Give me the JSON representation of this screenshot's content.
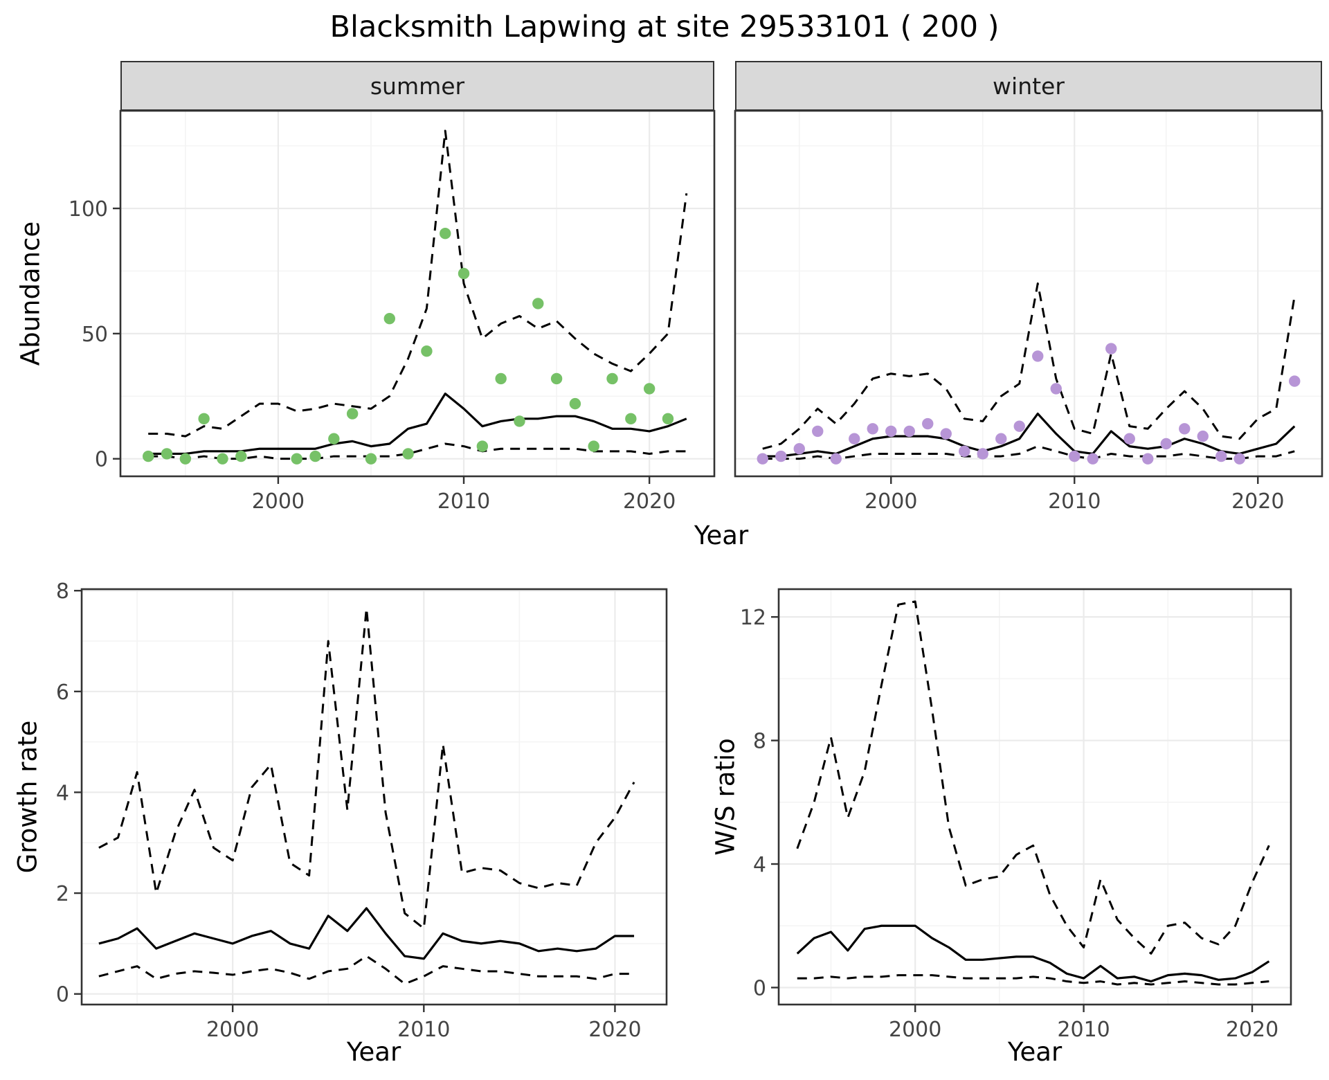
{
  "figure": {
    "title": "Blacksmith Lapwing at site 29533101 ( 200 )"
  },
  "colors": {
    "summer_point": "#76C167",
    "winter_point": "#B795D6",
    "line": "#000000",
    "strip_bg": "#D9D9D9",
    "strip_border": "#333333",
    "panel_border": "#333333",
    "grid_major": "#EBEBEB",
    "grid_minor": "#F4F4F4",
    "tick_label": "#444444"
  },
  "chart_data": [
    {
      "name": "abundance-summer",
      "type": "line",
      "facet_label": "summer",
      "xlabel": "Year",
      "ylabel": "Abundance",
      "xlim": [
        1991.5,
        2023.5
      ],
      "ylim": [
        -7,
        139
      ],
      "xticks": [
        2000,
        2010,
        2020
      ],
      "yticks": [
        0,
        50,
        100
      ],
      "xticks_minor": [
        1995,
        2005,
        2015
      ],
      "yticks_minor": [
        25,
        75,
        125
      ],
      "series": [
        {
          "name": "upper-ci",
          "style": "dashed",
          "x": [
            1993,
            1994,
            1995,
            1996,
            1997,
            1998,
            1999,
            2000,
            2001,
            2002,
            2003,
            2004,
            2005,
            2006,
            2007,
            2008,
            2009,
            2010,
            2011,
            2012,
            2013,
            2014,
            2015,
            2016,
            2017,
            2018,
            2019,
            2020,
            2021,
            2022
          ],
          "y": [
            10,
            10,
            9,
            13,
            12,
            17,
            22,
            22,
            19,
            20,
            22,
            21,
            20,
            25,
            40,
            60,
            131,
            70,
            48,
            54,
            57,
            52,
            55,
            48,
            42,
            38,
            35,
            42,
            50,
            106
          ]
        },
        {
          "name": "lower-ci",
          "style": "dashed",
          "x": [
            1993,
            1994,
            1995,
            1996,
            1997,
            1998,
            1999,
            2000,
            2001,
            2002,
            2003,
            2004,
            2005,
            2006,
            2007,
            2008,
            2009,
            2010,
            2011,
            2012,
            2013,
            2014,
            2015,
            2016,
            2017,
            2018,
            2019,
            2020,
            2021,
            2022
          ],
          "y": [
            1,
            1,
            0,
            1,
            0,
            0,
            1,
            0,
            0,
            0,
            1,
            1,
            1,
            1,
            2,
            4,
            6,
            5,
            3,
            4,
            4,
            4,
            4,
            4,
            3,
            3,
            3,
            2,
            3,
            3
          ]
        },
        {
          "name": "median",
          "style": "solid",
          "x": [
            1993,
            1994,
            1995,
            1996,
            1997,
            1998,
            1999,
            2000,
            2001,
            2002,
            2003,
            2004,
            2005,
            2006,
            2007,
            2008,
            2009,
            2010,
            2011,
            2012,
            2013,
            2014,
            2015,
            2016,
            2017,
            2018,
            2019,
            2020,
            2021,
            2022
          ],
          "y": [
            2,
            2,
            2,
            3,
            3,
            3,
            4,
            4,
            4,
            4,
            6,
            7,
            5,
            6,
            12,
            14,
            26,
            20,
            13,
            15,
            16,
            16,
            17,
            17,
            15,
            12,
            12,
            11,
            13,
            16
          ]
        },
        {
          "name": "observations",
          "style": "points",
          "color": "#76C167",
          "x": [
            1993,
            1994,
            1995,
            1996,
            1997,
            1998,
            2001,
            2002,
            2003,
            2004,
            2005,
            2006,
            2007,
            2008,
            2009,
            2010,
            2011,
            2012,
            2013,
            2014,
            2015,
            2016,
            2017,
            2018,
            2019,
            2020,
            2021
          ],
          "y": [
            1,
            2,
            0,
            16,
            0,
            1,
            0,
            1,
            8,
            18,
            0,
            56,
            2,
            43,
            90,
            74,
            5,
            32,
            15,
            62,
            32,
            22,
            5,
            32,
            16,
            28,
            16
          ]
        }
      ]
    },
    {
      "name": "abundance-winter",
      "type": "line",
      "facet_label": "winter",
      "xlabel": "Year",
      "ylabel": "Abundance",
      "xlim": [
        1991.5,
        2023.5
      ],
      "ylim": [
        -7,
        139
      ],
      "xticks": [
        2000,
        2010,
        2020
      ],
      "yticks": [
        0,
        50,
        100
      ],
      "xticks_minor": [
        1995,
        2005,
        2015
      ],
      "yticks_minor": [
        25,
        75,
        125
      ],
      "series": [
        {
          "name": "upper-ci",
          "style": "dashed",
          "x": [
            1993,
            1994,
            1995,
            1996,
            1997,
            1998,
            1999,
            2000,
            2001,
            2002,
            2003,
            2004,
            2005,
            2006,
            2007,
            2008,
            2009,
            2010,
            2011,
            2012,
            2013,
            2014,
            2015,
            2016,
            2017,
            2018,
            2019,
            2020,
            2021,
            2022
          ],
          "y": [
            4,
            6,
            12,
            20,
            14,
            22,
            32,
            34,
            33,
            34,
            28,
            16,
            15,
            25,
            30,
            70,
            32,
            12,
            10,
            42,
            13,
            12,
            20,
            27,
            20,
            9,
            8,
            16,
            20,
            65
          ]
        },
        {
          "name": "lower-ci",
          "style": "dashed",
          "x": [
            1993,
            1994,
            1995,
            1996,
            1997,
            1998,
            1999,
            2000,
            2001,
            2002,
            2003,
            2004,
            2005,
            2006,
            2007,
            2008,
            2009,
            2010,
            2011,
            2012,
            2013,
            2014,
            2015,
            2016,
            2017,
            2018,
            2019,
            2020,
            2021,
            2022
          ],
          "y": [
            0,
            0,
            0,
            1,
            0,
            1,
            2,
            2,
            2,
            2,
            2,
            1,
            1,
            1,
            2,
            5,
            3,
            1,
            0,
            2,
            1,
            1,
            1,
            2,
            1,
            0,
            0,
            1,
            1,
            3
          ]
        },
        {
          "name": "median",
          "style": "solid",
          "x": [
            1993,
            1994,
            1995,
            1996,
            1997,
            1998,
            1999,
            2000,
            2001,
            2002,
            2003,
            2004,
            2005,
            2006,
            2007,
            2008,
            2009,
            2010,
            2011,
            2012,
            2013,
            2014,
            2015,
            2016,
            2017,
            2018,
            2019,
            2020,
            2021,
            2022
          ],
          "y": [
            1,
            1,
            2,
            3,
            2,
            5,
            8,
            9,
            9,
            9,
            8,
            5,
            3,
            5,
            8,
            18,
            10,
            3,
            2,
            11,
            5,
            4,
            5,
            8,
            6,
            3,
            2,
            4,
            6,
            13
          ]
        },
        {
          "name": "observations",
          "style": "points",
          "color": "#B795D6",
          "x": [
            1993,
            1994,
            1995,
            1996,
            1997,
            1998,
            1999,
            2000,
            2001,
            2002,
            2003,
            2004,
            2005,
            2006,
            2007,
            2008,
            2009,
            2010,
            2011,
            2012,
            2013,
            2014,
            2015,
            2016,
            2017,
            2018,
            2019,
            2022
          ],
          "y": [
            0,
            1,
            4,
            11,
            0,
            8,
            12,
            11,
            11,
            14,
            10,
            3,
            2,
            8,
            13,
            41,
            28,
            1,
            0,
            44,
            8,
            0,
            6,
            12,
            9,
            1,
            0,
            31
          ]
        }
      ]
    },
    {
      "name": "growth-rate",
      "type": "line",
      "xlabel": "Year",
      "ylabel": "Growth rate",
      "xlim": [
        1992.1,
        2022.7
      ],
      "ylim": [
        -0.21,
        8.03
      ],
      "xticks": [
        2000,
        2010,
        2020
      ],
      "yticks": [
        0,
        2,
        4,
        6,
        8
      ],
      "xticks_minor": [
        1995,
        2005,
        2015
      ],
      "yticks_minor": [
        1,
        3,
        5,
        7
      ],
      "series": [
        {
          "name": "upper-ci",
          "style": "dashed",
          "x": [
            1993,
            1994,
            1995,
            1996,
            1997,
            1998,
            1999,
            2000,
            2001,
            2002,
            2003,
            2004,
            2005,
            2006,
            2007,
            2008,
            2009,
            2010,
            2011,
            2012,
            2013,
            2014,
            2015,
            2016,
            2017,
            2018,
            2019,
            2020,
            2021
          ],
          "y": [
            2.9,
            3.1,
            4.4,
            2.0,
            3.2,
            4.05,
            2.9,
            2.65,
            4.1,
            4.55,
            2.6,
            2.35,
            7.0,
            3.65,
            7.65,
            3.6,
            1.6,
            1.3,
            4.95,
            2.4,
            2.5,
            2.45,
            2.2,
            2.1,
            2.2,
            2.15,
            3.0,
            3.5,
            4.2
          ]
        },
        {
          "name": "lower-ci",
          "style": "dashed",
          "x": [
            1993,
            1994,
            1995,
            1996,
            1997,
            1998,
            1999,
            2000,
            2001,
            2002,
            2003,
            2004,
            2005,
            2006,
            2007,
            2008,
            2009,
            2010,
            2011,
            2012,
            2013,
            2014,
            2015,
            2016,
            2017,
            2018,
            2019,
            2020,
            2021
          ],
          "y": [
            0.35,
            0.45,
            0.55,
            0.3,
            0.4,
            0.45,
            0.42,
            0.38,
            0.45,
            0.5,
            0.42,
            0.3,
            0.45,
            0.5,
            0.75,
            0.5,
            0.2,
            0.35,
            0.55,
            0.5,
            0.45,
            0.45,
            0.4,
            0.35,
            0.35,
            0.35,
            0.3,
            0.4,
            0.4
          ]
        },
        {
          "name": "median",
          "style": "solid",
          "x": [
            1993,
            1994,
            1995,
            1996,
            1997,
            1998,
            1999,
            2000,
            2001,
            2002,
            2003,
            2004,
            2005,
            2006,
            2007,
            2008,
            2009,
            2010,
            2011,
            2012,
            2013,
            2014,
            2015,
            2016,
            2017,
            2018,
            2019,
            2020,
            2021
          ],
          "y": [
            1.0,
            1.1,
            1.3,
            0.9,
            1.05,
            1.2,
            1.1,
            1.0,
            1.15,
            1.25,
            1.0,
            0.9,
            1.55,
            1.25,
            1.7,
            1.2,
            0.75,
            0.7,
            1.2,
            1.05,
            1.0,
            1.05,
            1.0,
            0.85,
            0.9,
            0.85,
            0.9,
            1.15,
            1.15
          ]
        }
      ]
    },
    {
      "name": "ws-ratio",
      "type": "line",
      "xlabel": "Year",
      "ylabel": "W/S ratio",
      "xlim": [
        1991.9,
        2022.3
      ],
      "ylim": [
        -0.55,
        12.9
      ],
      "xticks": [
        2000,
        2010,
        2020
      ],
      "yticks": [
        0,
        4,
        8,
        12
      ],
      "xticks_minor": [
        1995,
        2005,
        2015
      ],
      "yticks_minor": [
        2,
        6,
        10
      ],
      "series": [
        {
          "name": "upper-ci",
          "style": "dashed",
          "x": [
            1993,
            1994,
            1995,
            1996,
            1997,
            1998,
            1999,
            2000,
            2001,
            2002,
            2003,
            2004,
            2005,
            2006,
            2007,
            2008,
            2009,
            2010,
            2011,
            2012,
            2013,
            2014,
            2015,
            2016,
            2017,
            2018,
            2019,
            2020,
            2021
          ],
          "y": [
            4.5,
            6.0,
            8.1,
            5.5,
            7.0,
            9.8,
            12.4,
            12.5,
            9.0,
            5.2,
            3.3,
            3.5,
            3.6,
            4.3,
            4.6,
            3.0,
            2.0,
            1.3,
            3.5,
            2.2,
            1.6,
            1.1,
            2.0,
            2.1,
            1.6,
            1.4,
            2.0,
            3.4,
            4.6
          ]
        },
        {
          "name": "lower-ci",
          "style": "dashed",
          "x": [
            1993,
            1994,
            1995,
            1996,
            1997,
            1998,
            1999,
            2000,
            2001,
            2002,
            2003,
            2004,
            2005,
            2006,
            2007,
            2008,
            2009,
            2010,
            2011,
            2012,
            2013,
            2014,
            2015,
            2016,
            2017,
            2018,
            2019,
            2020,
            2021
          ],
          "y": [
            0.3,
            0.3,
            0.35,
            0.3,
            0.35,
            0.35,
            0.4,
            0.4,
            0.4,
            0.35,
            0.3,
            0.3,
            0.3,
            0.3,
            0.35,
            0.3,
            0.2,
            0.15,
            0.2,
            0.1,
            0.15,
            0.1,
            0.15,
            0.2,
            0.15,
            0.1,
            0.1,
            0.15,
            0.2
          ]
        },
        {
          "name": "median",
          "style": "solid",
          "x": [
            1993,
            1994,
            1995,
            1996,
            1997,
            1998,
            1999,
            2000,
            2001,
            2002,
            2003,
            2004,
            2005,
            2006,
            2007,
            2008,
            2009,
            2010,
            2011,
            2012,
            2013,
            2014,
            2015,
            2016,
            2017,
            2018,
            2019,
            2020,
            2021
          ],
          "y": [
            1.1,
            1.6,
            1.8,
            1.2,
            1.9,
            2.0,
            2.0,
            2.0,
            1.6,
            1.3,
            0.9,
            0.9,
            0.95,
            1.0,
            1.0,
            0.8,
            0.45,
            0.3,
            0.7,
            0.3,
            0.35,
            0.2,
            0.4,
            0.45,
            0.4,
            0.25,
            0.3,
            0.5,
            0.85
          ]
        }
      ]
    }
  ]
}
